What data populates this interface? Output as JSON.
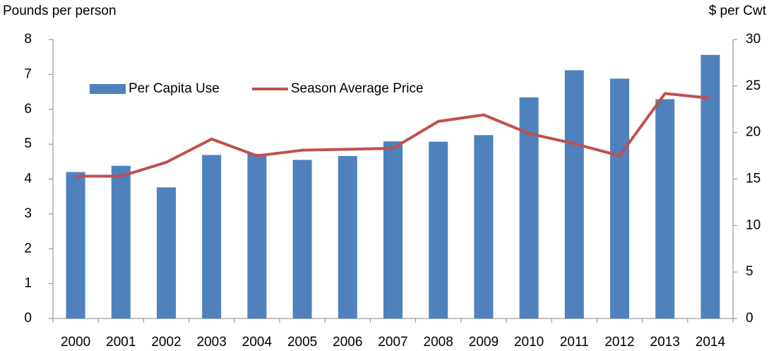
{
  "chart_data": {
    "type": "combo",
    "y_label": "Pounds per person",
    "y2_label": "$ per Cwt",
    "categories": [
      "2000",
      "2001",
      "2002",
      "2003",
      "2004",
      "2005",
      "2006",
      "2007",
      "2008",
      "2009",
      "2010",
      "2011",
      "2012",
      "2013",
      "2014"
    ],
    "series": [
      {
        "name": "Per Capita Use",
        "type": "bar",
        "color": "#4f81bd",
        "values": [
          4.2,
          4.38,
          3.76,
          4.69,
          4.72,
          4.55,
          4.66,
          5.08,
          5.07,
          5.26,
          6.34,
          7.12,
          6.88,
          6.29,
          7.56
        ]
      },
      {
        "name": "Season Average Price",
        "type": "line",
        "axis": "y2",
        "color": "#c0504d",
        "values": [
          15.3,
          15.3,
          16.8,
          19.3,
          17.5,
          18.1,
          18.2,
          18.3,
          21.2,
          21.9,
          19.9,
          18.8,
          17.5,
          24.2,
          23.7
        ]
      }
    ],
    "ylim": [
      0,
      8
    ],
    "yticks": [
      0,
      1,
      2,
      3,
      4,
      5,
      6,
      7,
      8
    ],
    "y2lim": [
      0,
      30
    ],
    "y2ticks": [
      0,
      5,
      10,
      15,
      20,
      25,
      30
    ],
    "legend": "top-left",
    "grid": false
  }
}
